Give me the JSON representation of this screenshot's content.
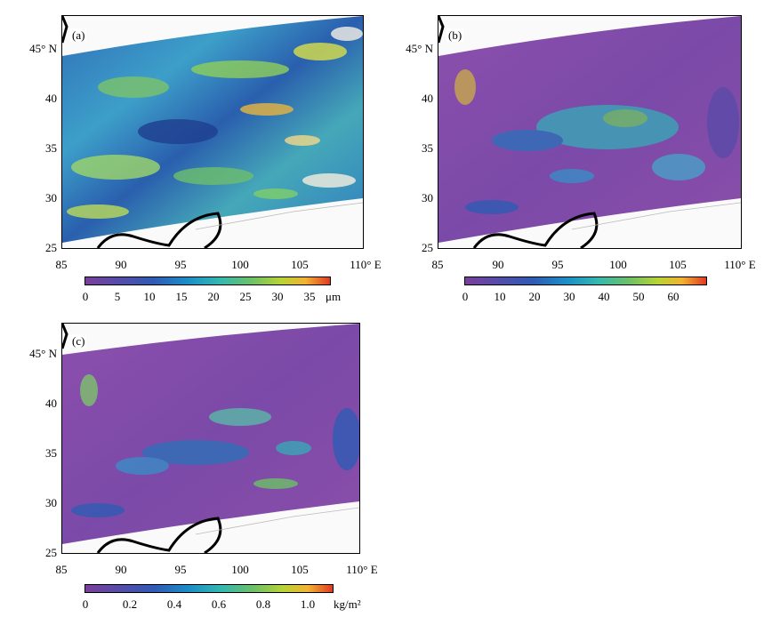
{
  "panels": [
    {
      "id": "a",
      "label": "(a)",
      "y_ticks": [
        "45° N",
        "40",
        "35",
        "30",
        "25"
      ],
      "x_ticks": [
        "85",
        "90",
        "95",
        "100",
        "105",
        "110° E"
      ],
      "colorbar": {
        "ticks": [
          "0",
          "5",
          "10",
          "15",
          "20",
          "25",
          "30",
          "35"
        ],
        "unit": "μm",
        "range": [
          0,
          38
        ]
      },
      "dominant_color": "#3a8cc6"
    },
    {
      "id": "b",
      "label": "(b)",
      "y_ticks": [
        "45° N",
        "40",
        "35",
        "30",
        "25"
      ],
      "x_ticks": [
        "85",
        "90",
        "95",
        "100",
        "105",
        "110° E"
      ],
      "colorbar": {
        "ticks": [
          "0",
          "10",
          "20",
          "30",
          "40",
          "50",
          "60"
        ],
        "unit": "",
        "range": [
          0,
          68
        ]
      },
      "dominant_color": "#8a4aa8"
    },
    {
      "id": "c",
      "label": "(c)",
      "y_ticks": [
        "45° N",
        "40",
        "35",
        "30",
        "25"
      ],
      "x_ticks": [
        "85",
        "90",
        "95",
        "100",
        "105",
        "110° E"
      ],
      "colorbar": {
        "ticks": [
          "0",
          "0.2",
          "0.4",
          "0.6",
          "0.8",
          "1.0"
        ],
        "unit": "kg/m²",
        "range": [
          0,
          1.1
        ]
      },
      "dominant_color": "#8a4aa8"
    }
  ],
  "map_extent": {
    "lon": [
      85,
      110
    ],
    "lat": [
      25,
      48
    ]
  }
}
